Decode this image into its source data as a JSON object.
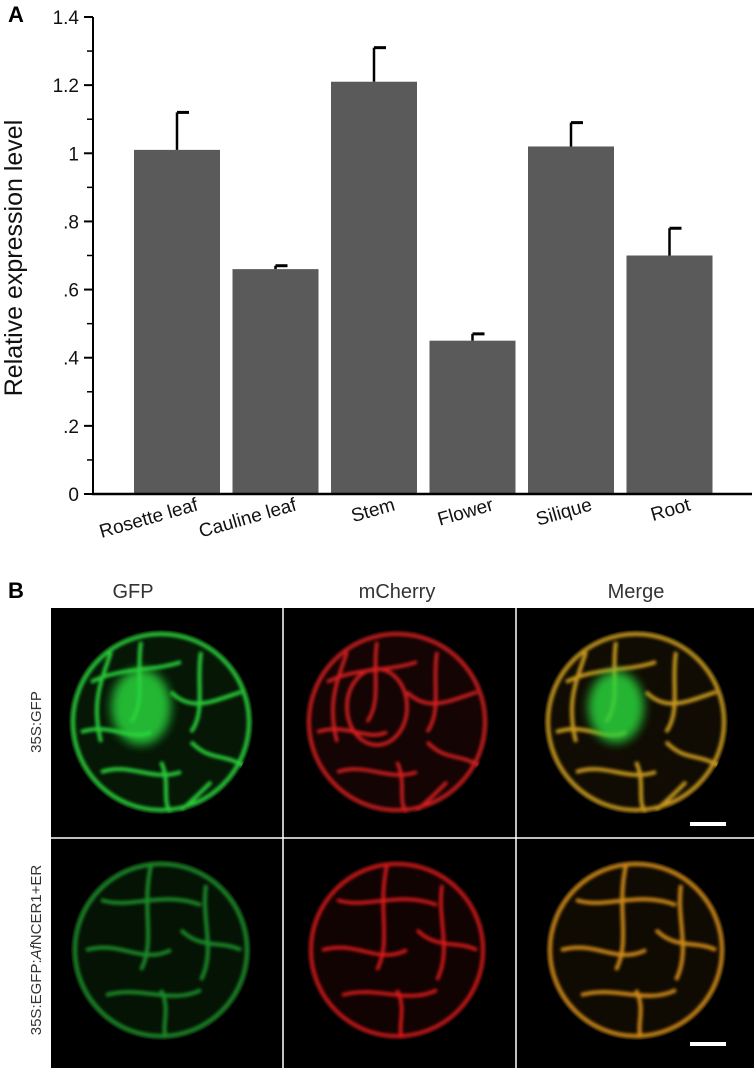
{
  "panel_a": {
    "letter": "A"
  },
  "panel_b": {
    "letter": "B",
    "columns": [
      "GFP",
      "mCherry",
      "Merge"
    ],
    "rows": [
      {
        "label": "35S:GFP"
      },
      {
        "label_prefix": "35S:EGFP:",
        "label_italic": "Af",
        "label_suffix": "NCER1+ER"
      }
    ]
  },
  "colors": {
    "bar": "#5a5a5a",
    "gfp": "#27c43a",
    "mcherry": "#e02020",
    "merge": "#c9a020",
    "micrograph_bg": "#000000"
  },
  "chart_data": {
    "type": "bar",
    "categories": [
      "Rosette leaf",
      "Cauline leaf",
      "Stem",
      "Flower",
      "Silique",
      "Root"
    ],
    "values": [
      1.01,
      0.66,
      1.21,
      0.45,
      1.02,
      0.7
    ],
    "errors": [
      0.11,
      0.01,
      0.1,
      0.02,
      0.07,
      0.08
    ],
    "ylabel": "Relative expression level",
    "xlabel": "",
    "ylim": [
      0,
      1.4
    ],
    "yticks": [
      0,
      0.2,
      0.4,
      0.6,
      0.8,
      1.0,
      1.2,
      1.4
    ],
    "ytick_labels": [
      "0",
      ".2",
      ".4",
      ".6",
      ".8",
      "1",
      "1.2",
      "1.4"
    ],
    "grid": false
  }
}
